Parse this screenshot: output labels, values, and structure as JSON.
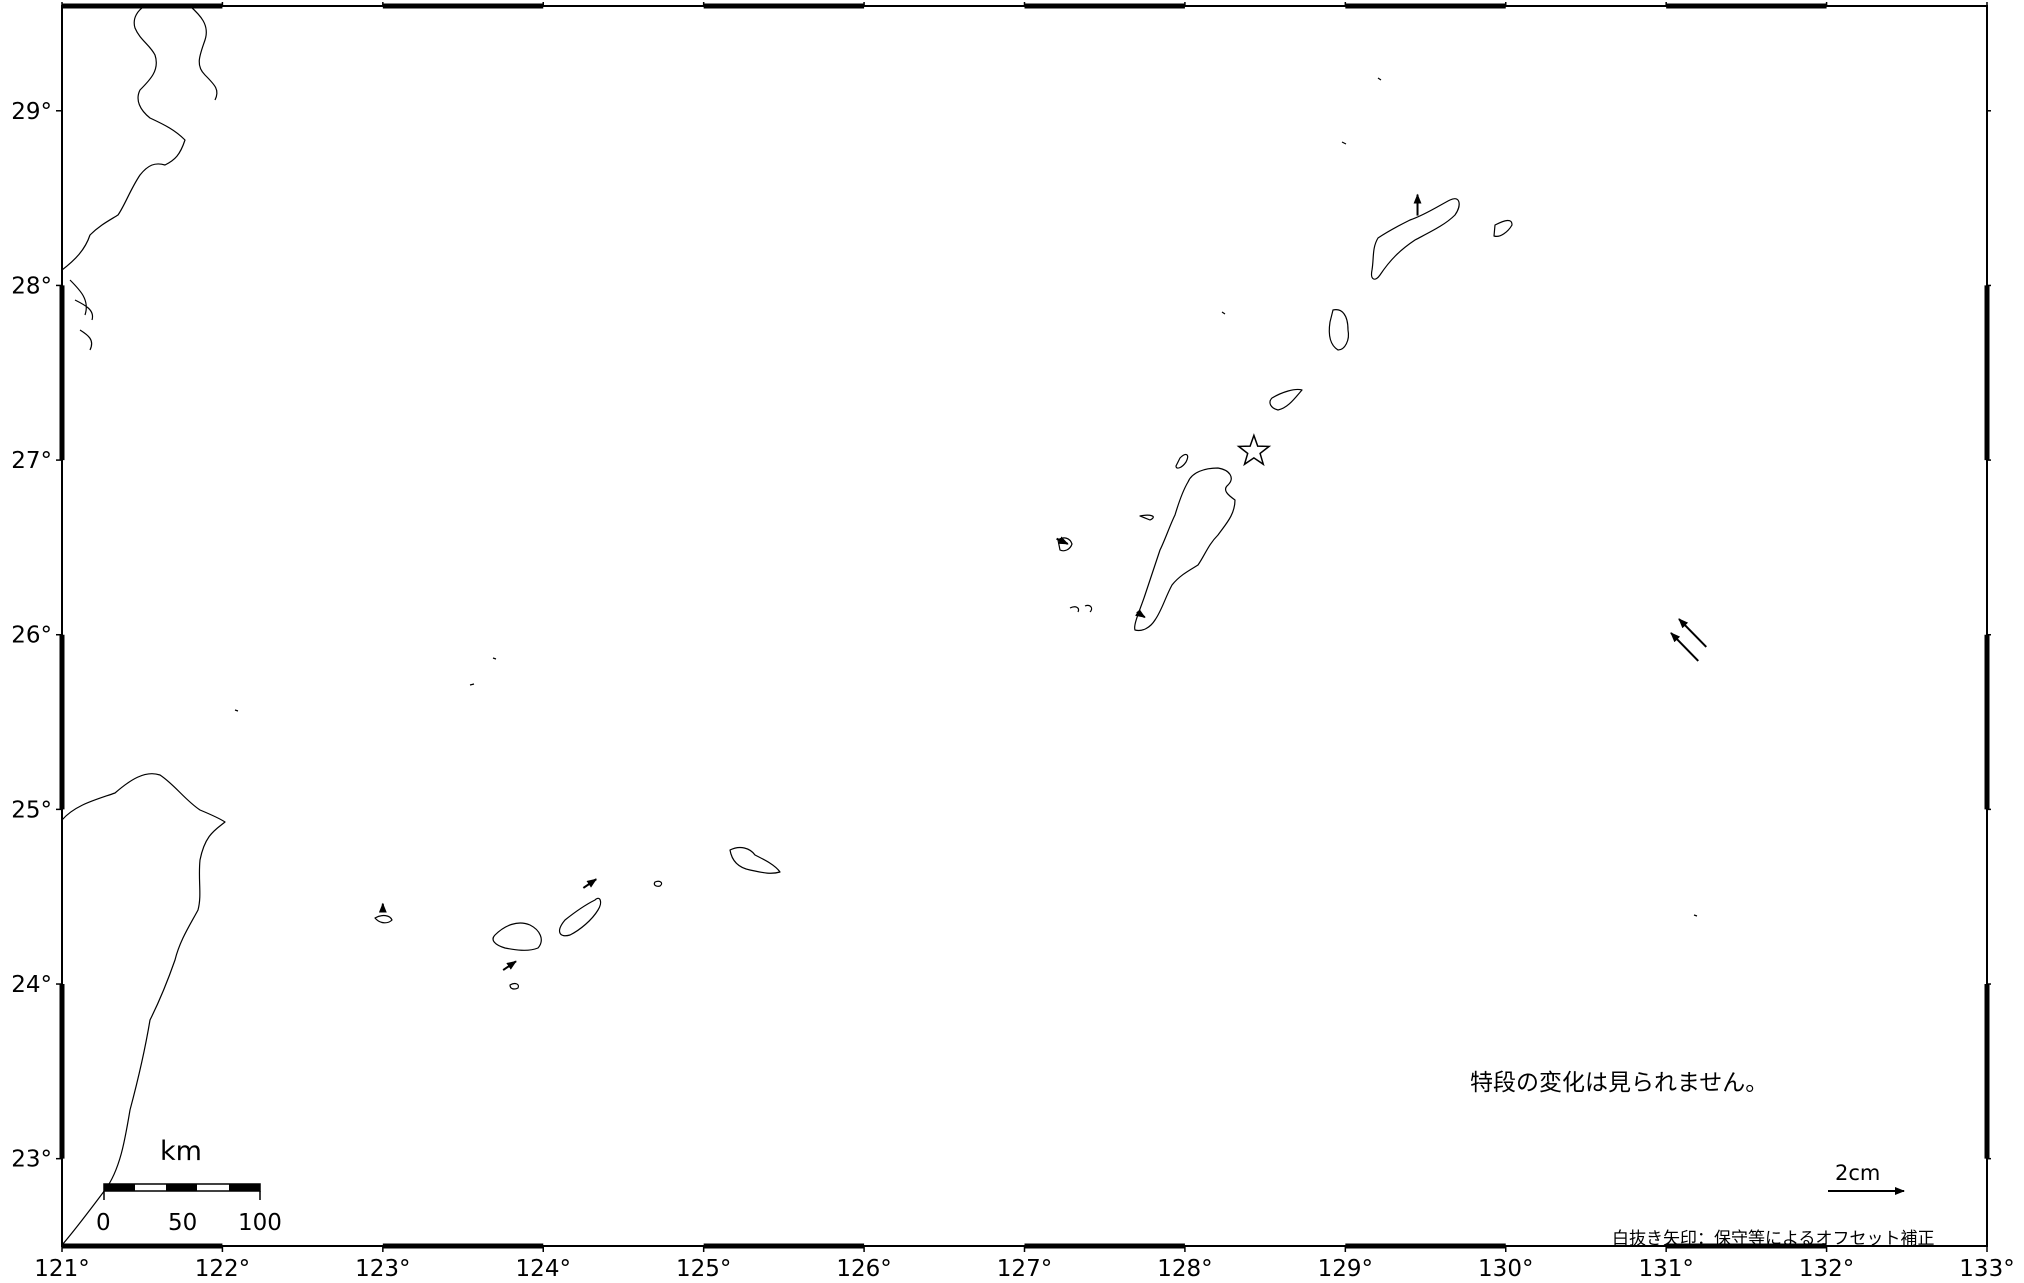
{
  "map": {
    "lon_range": [
      121,
      133
    ],
    "lat_range": [
      22.5,
      29.6
    ],
    "lon_ticks": [
      "121°",
      "122°",
      "123°",
      "124°",
      "125°",
      "126°",
      "127°",
      "128°",
      "129°",
      "130°",
      "131°",
      "132°",
      "133°"
    ],
    "lat_ticks": [
      "23°",
      "24°",
      "25°",
      "26°",
      "27°",
      "28°",
      "29°"
    ],
    "lat_tick_values": [
      23,
      24,
      25,
      26,
      27,
      28,
      29
    ],
    "lon_tick_values": [
      121,
      122,
      123,
      124,
      125,
      126,
      127,
      128,
      129,
      130,
      131,
      132,
      133
    ]
  },
  "epicenter": {
    "lon": 128.43,
    "lat": 27.05,
    "marker": "star-icon"
  },
  "displacement_vectors": [
    {
      "lon": 129.45,
      "lat": 28.4,
      "dlon": 0.0,
      "dlat": 0.12
    },
    {
      "lon": 127.2,
      "lat": 26.55,
      "dlon": 0.07,
      "dlat": -0.03
    },
    {
      "lon": 127.7,
      "lat": 26.13,
      "dlon": 0.05,
      "dlat": -0.03
    },
    {
      "lon": 131.25,
      "lat": 25.93,
      "dlon": -0.17,
      "dlat": 0.16
    },
    {
      "lon": 131.2,
      "lat": 25.85,
      "dlon": -0.17,
      "dlat": 0.16
    },
    {
      "lon": 124.25,
      "lat": 24.55,
      "dlon": 0.08,
      "dlat": 0.05
    },
    {
      "lon": 123.75,
      "lat": 24.08,
      "dlon": 0.08,
      "dlat": 0.05
    },
    {
      "lon": 123.0,
      "lat": 24.44,
      "dlon": 0.0,
      "dlat": 0.02
    }
  ],
  "note": "特段の変化は見られません。",
  "vector_scale": {
    "label": "2cm"
  },
  "scale_bar": {
    "unit": "km",
    "labels": [
      "0",
      "50",
      "100"
    ]
  },
  "legend_note": "白抜き矢印：保守等によるオフセット補正",
  "colors": {
    "coast": "#000000",
    "background": "#ffffff",
    "frame": "#000000"
  }
}
